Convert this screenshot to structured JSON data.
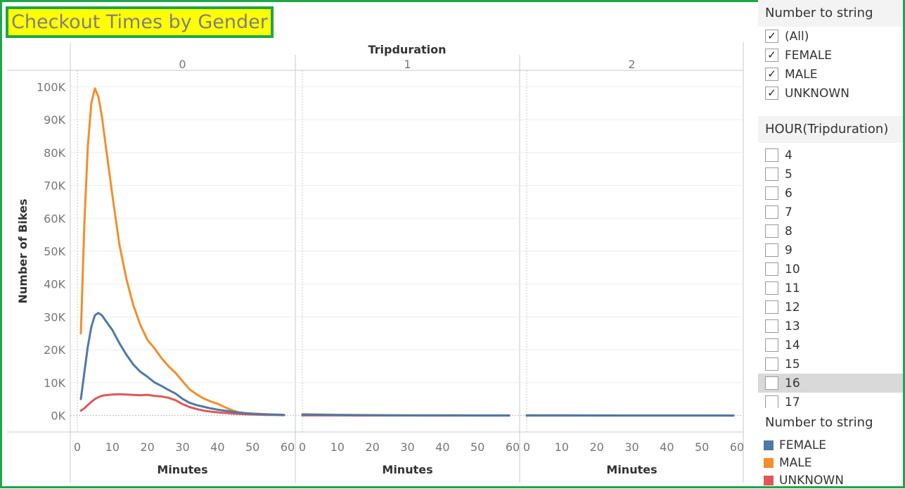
{
  "title": "Checkout Times by Gender",
  "colors": {
    "frame": "#1fa64a",
    "title_bg": "#ffff00",
    "title_text": "#7f7f7f"
  },
  "chart_data": {
    "type": "line",
    "column_header": "Tripduration",
    "panels": [
      "0",
      "1",
      "2"
    ],
    "xlabel": "Minutes",
    "ylabel": "Number of Bikes",
    "xlim": [
      -2,
      62
    ],
    "ylim": [
      -5000,
      105000
    ],
    "xticks": [
      0,
      10,
      20,
      30,
      40,
      50,
      60
    ],
    "yticks": [
      0,
      10000,
      20000,
      30000,
      40000,
      50000,
      60000,
      70000,
      80000,
      90000,
      100000
    ],
    "ytick_labels": [
      "0K",
      "10K",
      "20K",
      "30K",
      "40K",
      "50K",
      "60K",
      "70K",
      "80K",
      "90K",
      "100K"
    ],
    "grid": true,
    "legend": "right",
    "series": [
      {
        "name": "FEMALE",
        "color": "#4e79a7",
        "panels": [
          {
            "x": [
              1,
              2,
              3,
              4,
              5,
              6,
              7,
              8,
              9,
              10,
              12,
              14,
              16,
              18,
              20,
              22,
              24,
              26,
              28,
              30,
              32,
              34,
              36,
              38,
              40,
              42,
              44,
              46,
              48,
              50,
              52,
              54,
              56,
              58,
              59
            ],
            "y": [
              5000,
              13000,
              21000,
              27000,
              30500,
              31200,
              30500,
              29000,
              27500,
              26000,
              22000,
              18500,
              15500,
              13300,
              11800,
              10100,
              9000,
              7800,
              6700,
              5100,
              3900,
              3200,
              2700,
              2200,
              1800,
              1500,
              1200,
              900,
              700,
              550,
              450,
              350,
              280,
              220,
              200
            ]
          },
          {
            "x": [
              0,
              10,
              20,
              30,
              40,
              50,
              59
            ],
            "y": [
              300,
              150,
              100,
              60,
              40,
              30,
              20
            ]
          },
          {
            "x": [
              0,
              10,
              20,
              30,
              40,
              50,
              59
            ],
            "y": [
              50,
              40,
              30,
              25,
              20,
              20,
              15
            ]
          }
        ]
      },
      {
        "name": "MALE",
        "color": "#f28e2b",
        "panels": [
          {
            "x": [
              1,
              2,
              3,
              4,
              5,
              6,
              7,
              8,
              9,
              10,
              12,
              14,
              16,
              18,
              20,
              22,
              24,
              26,
              28,
              30,
              32,
              34,
              36,
              38,
              40,
              42,
              44,
              46,
              48,
              50,
              52,
              54,
              56,
              58,
              59
            ],
            "y": [
              25000,
              58000,
              82000,
              95000,
              99500,
              97000,
              91000,
              83000,
              75000,
              67000,
              52000,
              41500,
              33500,
              27500,
              23000,
              20500,
              17500,
              15000,
              13000,
              10500,
              8000,
              6500,
              5200,
              4300,
              3600,
              2600,
              1700,
              1000,
              750,
              600,
              500,
              400,
              330,
              260,
              230
            ]
          },
          {
            "x": [
              0,
              10,
              20,
              30,
              40,
              50,
              59
            ],
            "y": [
              400,
              250,
              150,
              100,
              70,
              50,
              40
            ]
          },
          {
            "x": [
              0,
              10,
              20,
              30,
              40,
              50,
              59
            ],
            "y": [
              80,
              60,
              40,
              30,
              25,
              20,
              20
            ]
          }
        ]
      },
      {
        "name": "UNKNOWN",
        "color": "#e15759",
        "panels": [
          {
            "x": [
              1,
              2,
              3,
              4,
              5,
              6,
              7,
              8,
              9,
              10,
              12,
              14,
              16,
              18,
              20,
              22,
              24,
              26,
              28,
              30,
              32,
              34,
              36,
              38,
              40,
              42,
              44,
              46,
              48,
              50,
              52,
              54,
              56,
              58,
              59
            ],
            "y": [
              1500,
              2200,
              3200,
              4200,
              5000,
              5600,
              6000,
              6200,
              6300,
              6400,
              6500,
              6400,
              6300,
              6200,
              6300,
              6000,
              5800,
              5400,
              4700,
              3500,
              2600,
              2000,
              1500,
              1200,
              1000,
              800,
              600,
              500,
              400,
              320,
              260,
              210,
              170,
              140,
              120
            ]
          },
          {
            "x": [
              0,
              10,
              20,
              30,
              40,
              50,
              59
            ],
            "y": [
              60,
              40,
              30,
              20,
              15,
              10,
              8
            ]
          },
          {
            "x": [
              0,
              10,
              20,
              30,
              40,
              50,
              59
            ],
            "y": [
              10,
              8,
              6,
              5,
              4,
              3,
              3
            ]
          }
        ]
      }
    ]
  },
  "filters": {
    "gender": {
      "title": "Number to string",
      "items": [
        {
          "label": "(All)",
          "checked": true
        },
        {
          "label": "FEMALE",
          "checked": true
        },
        {
          "label": "MALE",
          "checked": true
        },
        {
          "label": "UNKNOWN",
          "checked": true
        }
      ]
    },
    "hour": {
      "title": "HOUR(Tripduration)",
      "items": [
        {
          "label": "4",
          "checked": false
        },
        {
          "label": "5",
          "checked": false
        },
        {
          "label": "6",
          "checked": false
        },
        {
          "label": "7",
          "checked": false
        },
        {
          "label": "8",
          "checked": false
        },
        {
          "label": "9",
          "checked": false
        },
        {
          "label": "10",
          "checked": false
        },
        {
          "label": "11",
          "checked": false
        },
        {
          "label": "12",
          "checked": false
        },
        {
          "label": "13",
          "checked": false
        },
        {
          "label": "14",
          "checked": false
        },
        {
          "label": "15",
          "checked": false
        },
        {
          "label": "16",
          "checked": false,
          "highlighted": true
        },
        {
          "label": "17",
          "checked": false
        }
      ]
    }
  },
  "legend": {
    "title": "Number to string",
    "items": [
      {
        "label": "FEMALE",
        "color": "#4e79a7"
      },
      {
        "label": "MALE",
        "color": "#f28e2b"
      },
      {
        "label": "UNKNOWN",
        "color": "#e15759"
      }
    ]
  }
}
